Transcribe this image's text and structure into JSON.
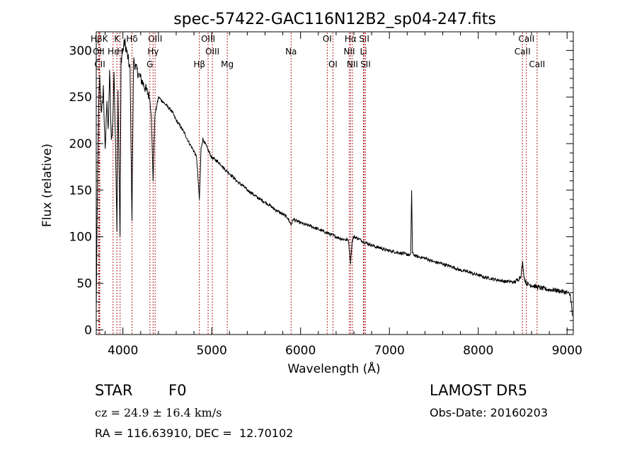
{
  "chart_data": {
    "type": "line",
    "title": "spec-57422-GAC116N12B2_sp04-247.fits",
    "xlabel": "Wavelength (Å)",
    "ylabel": "Flux (relative)",
    "xlim": [
      3700,
      9070
    ],
    "ylim": [
      -5,
      320
    ],
    "x_ticks": [
      4000,
      5000,
      6000,
      7000,
      8000,
      9000
    ],
    "y_ticks": [
      0,
      50,
      100,
      150,
      200,
      250,
      300
    ],
    "grid": false,
    "line_color": "#000000",
    "marker_color": "#b22222",
    "spectrum": {
      "x": [
        3700,
        3710,
        3720,
        3730,
        3740,
        3760,
        3780,
        3800,
        3820,
        3835,
        3850,
        3870,
        3889,
        3900,
        3920,
        3933,
        3945,
        3960,
        3968,
        3980,
        4000,
        4020,
        4050,
        4080,
        4102,
        4120,
        4150,
        4200,
        4250,
        4300,
        4320,
        4340,
        4360,
        4400,
        4450,
        4500,
        4550,
        4600,
        4650,
        4700,
        4750,
        4800,
        4830,
        4861,
        4880,
        4900,
        4950,
        5000,
        5050,
        5100,
        5150,
        5200,
        5250,
        5300,
        5350,
        5400,
        5450,
        5500,
        5550,
        5600,
        5650,
        5700,
        5750,
        5800,
        5850,
        5893,
        5920,
        5950,
        6000,
        6050,
        6100,
        6150,
        6200,
        6250,
        6300,
        6350,
        6400,
        6450,
        6500,
        6540,
        6563,
        6580,
        6600,
        6650,
        6700,
        6750,
        6800,
        6850,
        6900,
        6950,
        7000,
        7050,
        7100,
        7150,
        7200,
        7240,
        7250,
        7260,
        7300,
        7350,
        7400,
        7450,
        7500,
        7550,
        7600,
        7650,
        7700,
        7750,
        7800,
        7850,
        7900,
        7950,
        8000,
        8050,
        8100,
        8150,
        8200,
        8250,
        8300,
        8350,
        8400,
        8440,
        8480,
        8498,
        8520,
        8542,
        8560,
        8600,
        8662,
        8700,
        8750,
        8800,
        8850,
        8900,
        8950,
        9000,
        9040,
        9060
      ],
      "y": [
        20,
        120,
        200,
        250,
        270,
        230,
        260,
        190,
        250,
        210,
        280,
        200,
        230,
        280,
        180,
        110,
        260,
        150,
        100,
        290,
        300,
        310,
        295,
        280,
        120,
        290,
        280,
        270,
        260,
        250,
        230,
        160,
        230,
        250,
        245,
        240,
        235,
        225,
        218,
        210,
        200,
        192,
        185,
        140,
        195,
        205,
        195,
        185,
        182,
        178,
        172,
        168,
        163,
        158,
        155,
        150,
        147,
        143,
        140,
        137,
        134,
        130,
        127,
        124,
        121,
        113,
        119,
        117,
        115,
        113,
        112,
        110,
        108,
        106,
        104,
        102,
        100,
        98,
        97,
        96,
        72,
        95,
        100,
        98,
        95,
        93,
        91,
        89,
        88,
        86,
        85,
        84,
        83,
        82,
        81,
        80,
        150,
        82,
        79,
        78,
        77,
        75,
        73,
        72,
        71,
        69,
        68,
        66,
        64,
        63,
        62,
        60,
        59,
        57,
        56,
        55,
        54,
        53,
        52,
        52,
        51,
        53,
        58,
        72,
        55,
        50,
        49,
        48,
        46,
        45,
        44,
        43,
        43,
        42,
        41,
        40,
        37,
        15
      ]
    },
    "lines": [
      {
        "label": "HβK",
        "x": 3734,
        "row": 0
      },
      {
        "label": "CII",
        "x": 3740,
        "row": 2
      },
      {
        "label": "OII",
        "x": 3727,
        "row": 1
      },
      {
        "label": "Hε",
        "x": 3889,
        "row": 1
      },
      {
        "label": "K",
        "x": 3933,
        "row": 0
      },
      {
        "label": "H",
        "x": 3968,
        "row": 1
      },
      {
        "label": "Hδ",
        "x": 4102,
        "row": 0
      },
      {
        "label": "OIII",
        "x": 4363,
        "row": 0
      },
      {
        "label": "Hγ",
        "x": 4340,
        "row": 1
      },
      {
        "label": "G",
        "x": 4304,
        "row": 2
      },
      {
        "label": "Hβ",
        "x": 4861,
        "row": 2
      },
      {
        "label": "OIII",
        "x": 4959,
        "row": 0
      },
      {
        "label": "OIII",
        "x": 5007,
        "row": 1
      },
      {
        "label": "Mg",
        "x": 5175,
        "row": 2
      },
      {
        "label": "Na",
        "x": 5893,
        "row": 1
      },
      {
        "label": "OI",
        "x": 6300,
        "row": 0
      },
      {
        "label": "OI",
        "x": 6364,
        "row": 2
      },
      {
        "label": "Hα",
        "x": 6563,
        "row": 0
      },
      {
        "label": "NII",
        "x": 6548,
        "row": 1
      },
      {
        "label": "NII",
        "x": 6583,
        "row": 2
      },
      {
        "label": "SII",
        "x": 6716,
        "row": 0
      },
      {
        "label": "Li",
        "x": 6708,
        "row": 1
      },
      {
        "label": "SII",
        "x": 6731,
        "row": 2
      },
      {
        "label": "CaII",
        "x": 8542,
        "row": 0
      },
      {
        "label": "CaII",
        "x": 8498,
        "row": 1
      },
      {
        "label": "CaII",
        "x": 8662,
        "row": 2
      }
    ]
  },
  "info": {
    "class": "STAR",
    "subclass": "F0",
    "cz": "cz = 24.9 ± 16.4 km/s",
    "coords": "RA = 116.63910, DEC =  12.70102",
    "survey": "LAMOST DR5",
    "obs_date": "Obs-Date: 20160203"
  }
}
